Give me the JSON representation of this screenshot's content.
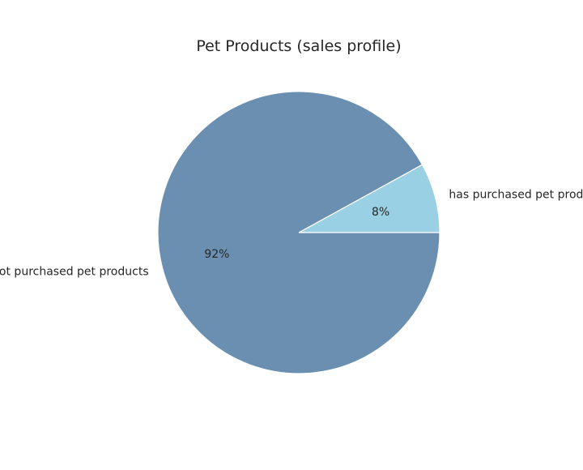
{
  "chart_data": {
    "type": "pie",
    "title": "Pet Products (sales profile)",
    "slices": [
      {
        "label": "has purchased pet products",
        "value": 8,
        "pct_label": "8%",
        "color": "#9ad0e4"
      },
      {
        "label": "has not purchased pet products",
        "value": 92,
        "pct_label": "92%",
        "color": "#6a8fb0"
      }
    ],
    "start_angle_deg": 0,
    "direction": "counterclockwise",
    "legend": "none"
  }
}
